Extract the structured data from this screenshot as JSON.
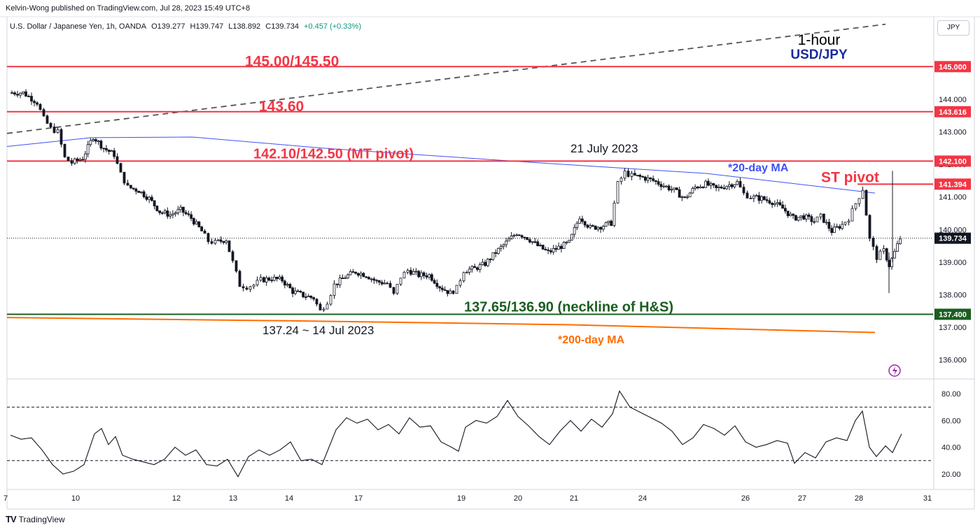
{
  "header": {
    "publisher": "Kelvin-Wong published on TradingView.com, Jul 28, 2023 15:49 UTC+8",
    "symbol": "U.S. Dollar / Japanese Yen, 1h, OANDA",
    "open": "O139.277",
    "high": "H139.747",
    "low": "L138.892",
    "close": "C139.734",
    "change": "+0.457 (+0.33%)",
    "currency": "JPY"
  },
  "footer": {
    "brand": "TradingView",
    "logo": "TV"
  },
  "colors": {
    "resistance": "#f23645",
    "support": "#1b5e20",
    "ma20": "#3f51f5",
    "ma200": "#ff6d00",
    "trendline": "#555555",
    "candle_up": "#ffffff",
    "candle_down": "#131722",
    "rsi": "#131722"
  },
  "chart_data": [
    {
      "type": "candlestick",
      "title_timeframe": "1-hour",
      "title_symbol": "USD/JPY",
      "x_ticks": [
        "7",
        "10",
        "12",
        "13",
        "14",
        "17",
        "19",
        "20",
        "21",
        "24",
        "26",
        "27",
        "28",
        "31"
      ],
      "ylim": [
        135.5,
        145.8
      ],
      "y_ticks": [
        "136.000",
        "137.000",
        "138.000",
        "139.000",
        "140.000",
        "141.000",
        "142.000",
        "143.000",
        "144.000",
        "145.000"
      ],
      "last_price": "139.734",
      "price_levels": [
        {
          "label": "145.00/145.50",
          "value": 145.0,
          "axis_label": "145.000",
          "color": "#f23645"
        },
        {
          "label": "143.60",
          "value": 143.616,
          "axis_label": "143.616",
          "color": "#f23645"
        },
        {
          "label": "142.10/142.50 (MT pivot)",
          "value": 142.1,
          "axis_label": "142.100",
          "color": "#f23645"
        },
        {
          "label": "ST pivot",
          "value": 141.394,
          "axis_label": "141.394",
          "color": "#f23645"
        },
        {
          "label": "137.65/136.90 (neckline of H&S)",
          "value": 137.4,
          "axis_label": "137.400",
          "color": "#1b5e20"
        }
      ],
      "annotations": {
        "high_label": "21 July 2023",
        "low_label": "137.24 ~ 14 Jul 2023",
        "ma20_label": "*20-day MA",
        "ma200_label": "*200-day MA"
      },
      "series": [
        {
          "name": "*20-day MA",
          "points": [
            [
              0,
              142.55
            ],
            [
              120,
              142.82
            ],
            [
              265,
              142.84
            ],
            [
              450,
              142.5
            ],
            [
              750,
              142.06
            ],
            [
              1000,
              141.72
            ],
            [
              1240,
              141.12
            ]
          ]
        },
        {
          "name": "*200-day MA",
          "points": [
            [
              0,
              137.3
            ],
            [
              400,
              137.2
            ],
            [
              800,
              137.08
            ],
            [
              1240,
              136.84
            ]
          ]
        },
        {
          "name": "trendline",
          "points": [
            [
              0,
              142.95
            ],
            [
              1255,
              146.3
            ]
          ]
        },
        {
          "name": "close",
          "points": [
            [
              5,
              144.2
            ],
            [
              25,
              144.2
            ],
            [
              45,
              143.9
            ],
            [
              55,
              143.4
            ],
            [
              65,
              143.1
            ],
            [
              75,
              143.0
            ],
            [
              85,
              142.2
            ],
            [
              95,
              142.05
            ],
            [
              110,
              142.2
            ],
            [
              125,
              142.85
            ],
            [
              140,
              142.5
            ],
            [
              155,
              142.3
            ],
            [
              165,
              141.7
            ],
            [
              175,
              141.3
            ],
            [
              190,
              141.2
            ],
            [
              205,
              140.95
            ],
            [
              220,
              140.55
            ],
            [
              235,
              140.45
            ],
            [
              250,
              140.6
            ],
            [
              265,
              140.35
            ],
            [
              280,
              139.95
            ],
            [
              290,
              139.65
            ],
            [
              300,
              139.6
            ],
            [
              315,
              139.7
            ],
            [
              325,
              139.0
            ],
            [
              335,
              138.3
            ],
            [
              345,
              138.25
            ],
            [
              355,
              138.3
            ],
            [
              365,
              138.45
            ],
            [
              380,
              138.5
            ],
            [
              395,
              138.45
            ],
            [
              410,
              138.1
            ],
            [
              425,
              137.98
            ],
            [
              440,
              137.9
            ],
            [
              450,
              137.5
            ],
            [
              460,
              137.8
            ],
            [
              470,
              138.3
            ],
            [
              485,
              138.55
            ],
            [
              500,
              138.7
            ],
            [
              515,
              138.6
            ],
            [
              530,
              138.4
            ],
            [
              545,
              138.35
            ],
            [
              555,
              138.0
            ],
            [
              565,
              138.55
            ],
            [
              575,
              138.75
            ],
            [
              590,
              138.6
            ],
            [
              605,
              138.6
            ],
            [
              620,
              138.25
            ],
            [
              635,
              138.05
            ],
            [
              645,
              138.2
            ],
            [
              655,
              138.75
            ],
            [
              670,
              138.8
            ],
            [
              685,
              138.95
            ],
            [
              700,
              139.3
            ],
            [
              715,
              139.6
            ],
            [
              730,
              139.9
            ],
            [
              745,
              139.75
            ],
            [
              760,
              139.5
            ],
            [
              775,
              139.3
            ],
            [
              790,
              139.45
            ],
            [
              805,
              139.6
            ],
            [
              820,
              140.4
            ],
            [
              835,
              140.05
            ],
            [
              850,
              140.1
            ],
            [
              865,
              140.2
            ],
            [
              875,
              141.4
            ],
            [
              885,
              141.75
            ],
            [
              895,
              141.65
            ],
            [
              910,
              141.6
            ],
            [
              925,
              141.5
            ],
            [
              940,
              141.35
            ],
            [
              955,
              141.2
            ],
            [
              970,
              140.95
            ],
            [
              985,
              141.3
            ],
            [
              1000,
              141.4
            ],
            [
              1015,
              141.25
            ],
            [
              1030,
              141.35
            ],
            [
              1045,
              141.45
            ],
            [
              1055,
              141.1
            ],
            [
              1065,
              141.0
            ],
            [
              1080,
              140.95
            ],
            [
              1095,
              140.85
            ],
            [
              1110,
              140.65
            ],
            [
              1125,
              140.35
            ],
            [
              1140,
              140.4
            ],
            [
              1155,
              140.25
            ],
            [
              1165,
              140.4
            ],
            [
              1180,
              139.95
            ],
            [
              1195,
              140.15
            ],
            [
              1205,
              140.35
            ],
            [
              1215,
              140.8
            ],
            [
              1225,
              141.25
            ],
            [
              1235,
              139.7
            ],
            [
              1245,
              139.15
            ],
            [
              1255,
              139.35
            ],
            [
              1262,
              138.9
            ],
            [
              1270,
              139.3
            ],
            [
              1278,
              139.73
            ]
          ]
        }
      ],
      "rsi": {
        "ylim": [
          10,
          90
        ],
        "y_ticks": [
          "20.00",
          "40.00",
          "60.00",
          "80.00"
        ],
        "levels": [
          30,
          70
        ],
        "points": [
          [
            5,
            49
          ],
          [
            20,
            46
          ],
          [
            35,
            47
          ],
          [
            50,
            38
          ],
          [
            65,
            27
          ],
          [
            80,
            20
          ],
          [
            95,
            22
          ],
          [
            110,
            27
          ],
          [
            125,
            50
          ],
          [
            135,
            54
          ],
          [
            145,
            42
          ],
          [
            155,
            48
          ],
          [
            165,
            34
          ],
          [
            180,
            31
          ],
          [
            195,
            29
          ],
          [
            210,
            27
          ],
          [
            225,
            31
          ],
          [
            240,
            40
          ],
          [
            255,
            34
          ],
          [
            270,
            38
          ],
          [
            285,
            27
          ],
          [
            300,
            26
          ],
          [
            315,
            31
          ],
          [
            330,
            18
          ],
          [
            345,
            33
          ],
          [
            360,
            38
          ],
          [
            375,
            34
          ],
          [
            390,
            38
          ],
          [
            405,
            44
          ],
          [
            420,
            30
          ],
          [
            435,
            31
          ],
          [
            450,
            27
          ],
          [
            460,
            40
          ],
          [
            470,
            53
          ],
          [
            485,
            62
          ],
          [
            500,
            58
          ],
          [
            515,
            61
          ],
          [
            530,
            53
          ],
          [
            545,
            57
          ],
          [
            560,
            50
          ],
          [
            575,
            62
          ],
          [
            590,
            55
          ],
          [
            605,
            56
          ],
          [
            620,
            44
          ],
          [
            635,
            40
          ],
          [
            645,
            37
          ],
          [
            655,
            55
          ],
          [
            670,
            60
          ],
          [
            685,
            58
          ],
          [
            700,
            63
          ],
          [
            715,
            75
          ],
          [
            730,
            63
          ],
          [
            745,
            56
          ],
          [
            760,
            48
          ],
          [
            775,
            42
          ],
          [
            790,
            52
          ],
          [
            805,
            60
          ],
          [
            820,
            52
          ],
          [
            835,
            61
          ],
          [
            850,
            55
          ],
          [
            865,
            65
          ],
          [
            875,
            82
          ],
          [
            890,
            70
          ],
          [
            905,
            66
          ],
          [
            920,
            62
          ],
          [
            935,
            58
          ],
          [
            950,
            52
          ],
          [
            965,
            42
          ],
          [
            980,
            47
          ],
          [
            995,
            57
          ],
          [
            1010,
            54
          ],
          [
            1025,
            49
          ],
          [
            1040,
            56
          ],
          [
            1055,
            44
          ],
          [
            1070,
            40
          ],
          [
            1085,
            42
          ],
          [
            1100,
            45
          ],
          [
            1115,
            43
          ],
          [
            1125,
            28
          ],
          [
            1140,
            36
          ],
          [
            1155,
            32
          ],
          [
            1170,
            44
          ],
          [
            1185,
            47
          ],
          [
            1200,
            45
          ],
          [
            1212,
            60
          ],
          [
            1222,
            67
          ],
          [
            1232,
            40
          ],
          [
            1242,
            33
          ],
          [
            1255,
            41
          ],
          [
            1265,
            36
          ],
          [
            1278,
            50
          ]
        ]
      }
    }
  ]
}
